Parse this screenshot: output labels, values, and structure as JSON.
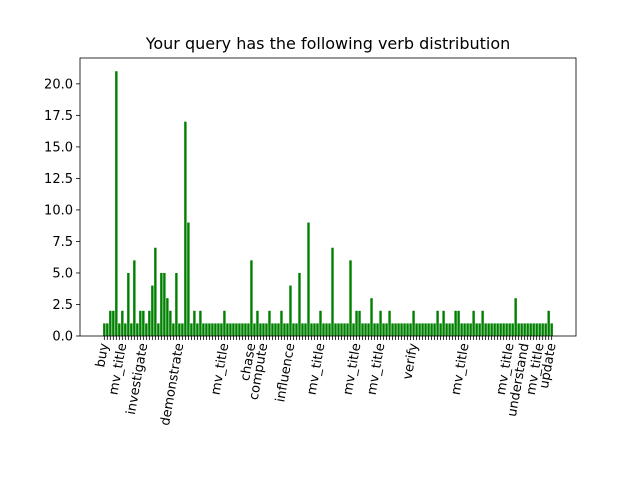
{
  "chart_data": {
    "type": "bar",
    "title": "Your query has the following verb distribution",
    "categories": [
      "buy",
      null,
      null,
      null,
      null,
      null,
      "mv_title",
      null,
      null,
      null,
      null,
      null,
      null,
      "investigate",
      null,
      null,
      null,
      null,
      null,
      null,
      null,
      null,
      null,
      null,
      null,
      "demonstrate",
      null,
      null,
      null,
      null,
      null,
      null,
      null,
      null,
      null,
      null,
      null,
      null,
      null,
      null,
      "mv_title",
      null,
      null,
      null,
      null,
      null,
      null,
      null,
      null,
      "chase",
      null,
      null,
      null,
      "compute",
      null,
      null,
      null,
      null,
      null,
      null,
      null,
      null,
      "influence",
      null,
      null,
      null,
      null,
      null,
      null,
      null,
      null,
      null,
      "mv_title",
      null,
      null,
      null,
      null,
      null,
      null,
      null,
      null,
      null,
      null,
      null,
      "mv_title",
      null,
      null,
      null,
      null,
      null,
      null,
      null,
      "mv_title",
      null,
      null,
      null,
      null,
      null,
      null,
      null,
      null,
      null,
      null,
      "verify",
      null,
      null,
      null,
      null,
      null,
      null,
      null,
      null,
      null,
      null,
      null,
      null,
      null,
      null,
      null,
      null,
      "mv_title",
      null,
      null,
      null,
      null,
      null,
      null,
      null,
      null,
      null,
      null,
      null,
      null,
      null,
      null,
      "mv_title",
      null,
      null,
      null,
      null,
      "understand",
      null,
      null,
      null,
      null,
      "mv_title",
      null,
      null,
      null,
      "update"
    ],
    "values": [
      1,
      1,
      2,
      2,
      21,
      1,
      2,
      1,
      5,
      1,
      6,
      1,
      2,
      2,
      1,
      2,
      4,
      7,
      1,
      5,
      5,
      3,
      2,
      1,
      5,
      1,
      1,
      17,
      9,
      1,
      2,
      1,
      2,
      1,
      1,
      1,
      1,
      1,
      1,
      1,
      2,
      1,
      1,
      1,
      1,
      1,
      1,
      1,
      1,
      6,
      1,
      2,
      1,
      1,
      1,
      2,
      1,
      1,
      1,
      2,
      1,
      1,
      4,
      1,
      1,
      5,
      1,
      1,
      9,
      1,
      1,
      1,
      2,
      1,
      1,
      1,
      7,
      1,
      1,
      1,
      1,
      1,
      6,
      1,
      2,
      2,
      1,
      1,
      1,
      3,
      1,
      1,
      2,
      1,
      1,
      2,
      1,
      1,
      1,
      1,
      1,
      1,
      1,
      2,
      1,
      1,
      1,
      1,
      1,
      1,
      1,
      2,
      1,
      2,
      1,
      1,
      1,
      2,
      2,
      1,
      1,
      1,
      1,
      2,
      1,
      1,
      2,
      1,
      1,
      1,
      1,
      1,
      1,
      1,
      1,
      1,
      1,
      3,
      1,
      1,
      1,
      1,
      1,
      1,
      1,
      1,
      1,
      1,
      2,
      1
    ],
    "color": "green",
    "ylim": [
      0,
      22.05
    ],
    "yticks": [
      {
        "value": 0,
        "label": "0.0"
      },
      2.5,
      {
        "value": 5,
        "label": "5.0"
      },
      7.5,
      {
        "value": 10,
        "label": "10.0"
      },
      12.5,
      {
        "value": 15,
        "label": "15.0"
      },
      17.5,
      {
        "value": 20,
        "label": "20.0"
      }
    ],
    "grid": false
  }
}
